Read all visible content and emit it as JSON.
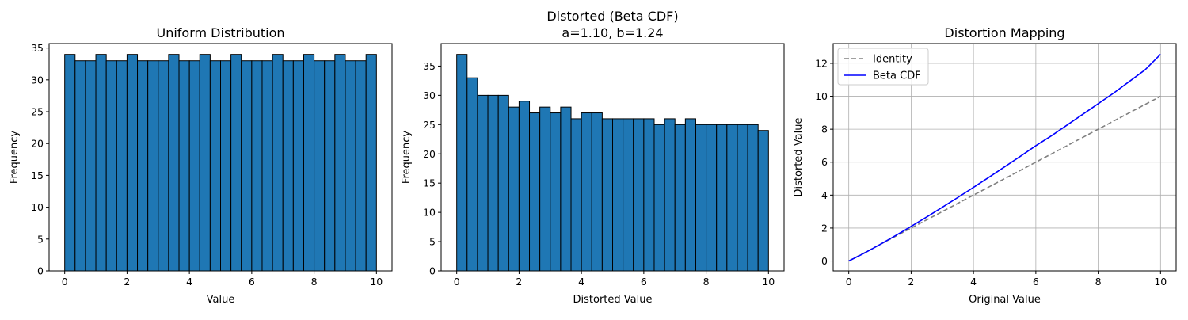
{
  "chart_data": [
    {
      "type": "bar",
      "title": "Uniform Distribution",
      "xlabel": "Value",
      "ylabel": "Frequency",
      "xlim": [
        -0.5,
        10.5
      ],
      "ylim": [
        0,
        35.7
      ],
      "xticks": [
        "0",
        "2",
        "4",
        "6",
        "8",
        "10"
      ],
      "yticks": [
        "0",
        "5",
        "10",
        "15",
        "20",
        "25",
        "30",
        "35"
      ],
      "grid": false,
      "bar_color": "#1f77b4",
      "edge_color": "#000000",
      "bin_edges": [
        0,
        0.3333,
        0.6667,
        1.0,
        1.3333,
        1.6667,
        2.0,
        2.3333,
        2.6667,
        3.0,
        3.3333,
        3.6667,
        4.0,
        4.3333,
        4.6667,
        5.0,
        5.3333,
        5.6667,
        6.0,
        6.3333,
        6.6667,
        7.0,
        7.3333,
        7.6667,
        8.0,
        8.3333,
        8.6667,
        9.0,
        9.3333,
        9.6667,
        10.0
      ],
      "values": [
        34,
        33,
        33,
        34,
        33,
        33,
        34,
        33,
        33,
        33,
        34,
        33,
        33,
        34,
        33,
        33,
        34,
        33,
        33,
        33,
        34,
        33,
        33,
        34,
        33,
        33,
        34,
        33,
        33,
        34
      ]
    },
    {
      "type": "bar",
      "title": "Distorted (Beta CDF)",
      "subtitle": "a=1.10, b=1.24",
      "xlabel": "Distorted Value",
      "ylabel": "Frequency",
      "xlim": [
        -0.5,
        10.5
      ],
      "ylim": [
        0,
        38.85
      ],
      "xticks": [
        "0",
        "2",
        "4",
        "6",
        "8",
        "10"
      ],
      "yticks": [
        "0",
        "5",
        "10",
        "15",
        "20",
        "25",
        "30",
        "35"
      ],
      "grid": false,
      "bar_color": "#1f77b4",
      "edge_color": "#000000",
      "bin_edges": [
        0,
        0.3333,
        0.6667,
        1.0,
        1.3333,
        1.6667,
        2.0,
        2.3333,
        2.6667,
        3.0,
        3.3333,
        3.6667,
        4.0,
        4.3333,
        4.6667,
        5.0,
        5.3333,
        5.6667,
        6.0,
        6.3333,
        6.6667,
        7.0,
        7.3333,
        7.6667,
        8.0,
        8.3333,
        8.6667,
        9.0,
        9.3333,
        9.6667,
        10.0
      ],
      "values": [
        37,
        33,
        30,
        30,
        30,
        28,
        29,
        27,
        28,
        27,
        28,
        26,
        27,
        27,
        26,
        26,
        26,
        26,
        26,
        25,
        26,
        25,
        26,
        25,
        25,
        25,
        25,
        25,
        25,
        24
      ]
    },
    {
      "type": "line",
      "title": "Distortion Mapping",
      "xlabel": "Original Value",
      "ylabel": "Distorted Value",
      "xlim": [
        -0.5,
        10.5
      ],
      "ylim": [
        -0.6,
        13.2
      ],
      "xticks": [
        "0",
        "2",
        "4",
        "6",
        "8",
        "10"
      ],
      "yticks": [
        "0",
        "2",
        "4",
        "6",
        "8",
        "10",
        "12"
      ],
      "grid": true,
      "legend": "top-left",
      "series": [
        {
          "name": "Identity",
          "color": "#808080",
          "dash": true,
          "x": [
            0,
            10
          ],
          "y": [
            0,
            10
          ]
        },
        {
          "name": "Beta CDF",
          "color": "#0000ff",
          "dash": false,
          "x": [
            0,
            0.5,
            1,
            1.5,
            2,
            2.5,
            3,
            3.5,
            4,
            4.5,
            5,
            5.5,
            6,
            6.5,
            7,
            7.5,
            8,
            8.5,
            9,
            9.5,
            10
          ],
          "y": [
            0,
            0.48,
            1.0,
            1.54,
            2.1,
            2.67,
            3.26,
            3.86,
            4.47,
            5.09,
            5.72,
            6.35,
            7.0,
            7.6,
            8.25,
            8.9,
            9.55,
            10.2,
            10.9,
            11.6,
            12.55
          ]
        }
      ]
    }
  ]
}
